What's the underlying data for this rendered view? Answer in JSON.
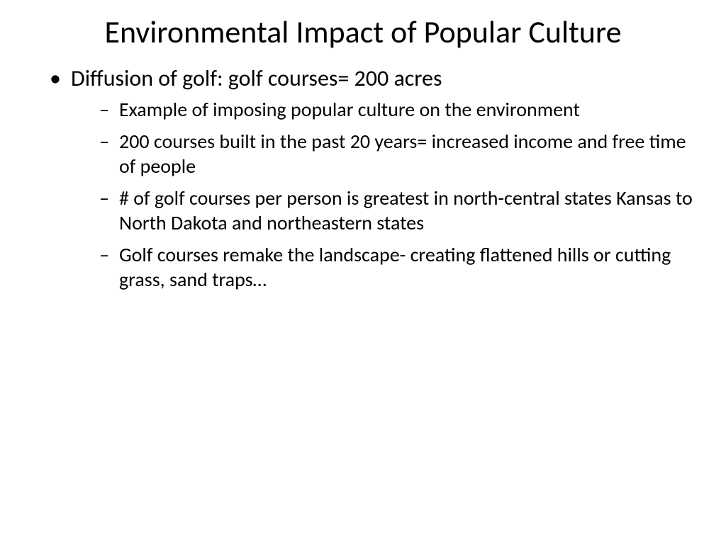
{
  "slide": {
    "title": "Environmental Impact of Popular Culture",
    "bullets": {
      "main": "Diffusion of golf: golf courses= 200 acres",
      "subs": [
        "Example of imposing popular culture on the environment",
        "200 courses built in the past 20 years= increased income and free time of people",
        "# of golf courses per person is greatest in north-central states Kansas to North Dakota and northeastern states",
        "Golf courses remake the landscape- creating flattened hills or cutting grass, sand traps…"
      ]
    }
  },
  "styling": {
    "background_color": "#ffffff",
    "text_color": "#000000",
    "title_fontsize": 44,
    "l1_fontsize": 32,
    "l2_fontsize": 28,
    "font_family": "Calibri"
  }
}
